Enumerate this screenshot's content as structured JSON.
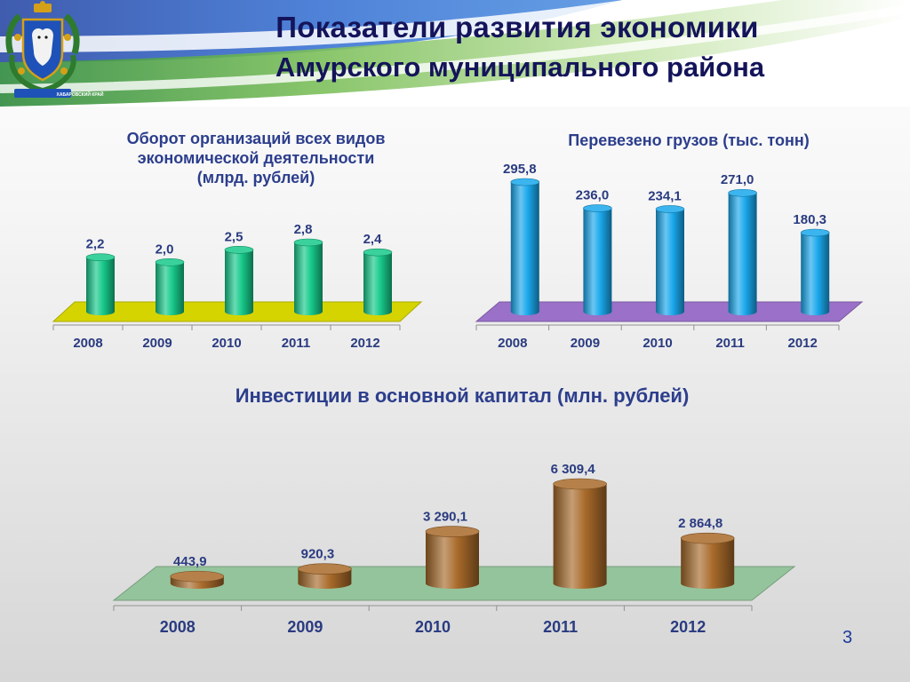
{
  "header": {
    "title_line1": "Показатели развития экономики",
    "title_line2": "Амурского муниципального района",
    "emblem_caption": "ХАБАРОВСКИЙ КРАЙ"
  },
  "page_number": "3",
  "colors": {
    "title": "#14145a",
    "chart_title": "#2c3e8c",
    "value_label": "#2a3b80",
    "turnover_bar": "#17c98a",
    "turnover_floor": "#d6d400",
    "cargo_bar": "#1aa8ec",
    "cargo_floor": "#9a70c8",
    "invest_bar": "#a86a2a",
    "invest_floor": "#94c49c"
  },
  "chart_data": [
    {
      "type": "bar",
      "title": "Оборот организаций всех видов экономической деятельности (млрд. рублей)",
      "title_lines": [
        "Оборот организаций всех видов",
        "экономической деятельности",
        "(млрд. рублей)"
      ],
      "categories": [
        "2008",
        "2009",
        "2010",
        "2011",
        "2012"
      ],
      "values": [
        2.2,
        2.0,
        2.5,
        2.8,
        2.4
      ],
      "labels": [
        "2,2",
        "2,0",
        "2,5",
        "2,8",
        "2,4"
      ]
    },
    {
      "type": "bar",
      "title": "Перевезено грузов (тыс. тонн)",
      "title_lines": [
        "Перевезено грузов (тыс. тонн)"
      ],
      "categories": [
        "2008",
        "2009",
        "2010",
        "2011",
        "2012"
      ],
      "values": [
        295.8,
        236.0,
        234.1,
        271.0,
        180.3
      ],
      "labels": [
        "295,8",
        "236,0",
        "234,1",
        "271,0",
        "180,3"
      ]
    },
    {
      "type": "bar",
      "title": "Инвестиции в основной капитал (млн. рублей)",
      "title_lines": [
        "Инвестиции в основной капитал (млн. рублей)"
      ],
      "categories": [
        "2008",
        "2009",
        "2010",
        "2011",
        "2012"
      ],
      "values": [
        443.9,
        920.3,
        3290.1,
        6309.4,
        2864.8
      ],
      "labels": [
        "443,9",
        "920,3",
        "3 290,1",
        "6 309,4",
        "2 864,8"
      ]
    }
  ]
}
